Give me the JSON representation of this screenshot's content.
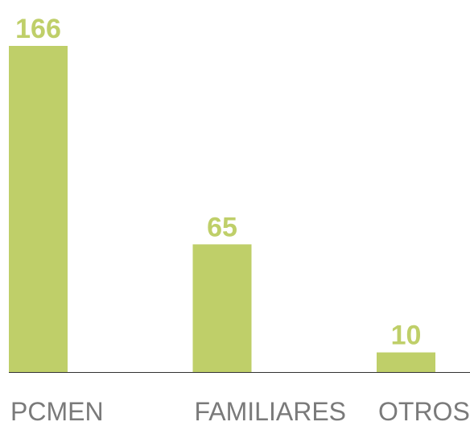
{
  "chart_data": {
    "type": "bar",
    "categories": [
      "PCMEN",
      "FAMILIARES",
      "OTROS"
    ],
    "values": [
      166,
      65,
      10
    ],
    "color": "#bfcf69",
    "label_color": "#7a7a7a"
  }
}
